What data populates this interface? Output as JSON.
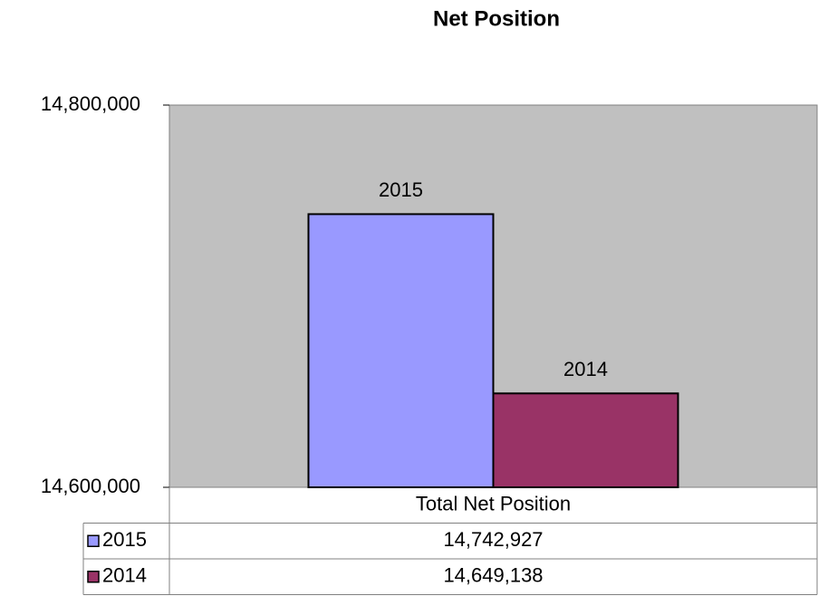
{
  "chart_data": {
    "type": "bar",
    "title": "Net Position",
    "categories": [
      "Total Net Position"
    ],
    "series": [
      {
        "name": "2015",
        "color": "#9999ff",
        "values": [
          14742927
        ],
        "value_labels": [
          "14,742,927"
        ]
      },
      {
        "name": "2014",
        "color": "#993366",
        "values": [
          14649138
        ],
        "value_labels": [
          "14,649,138"
        ]
      }
    ],
    "ylim": [
      14600000,
      14800000
    ],
    "yticks": [
      {
        "value": 14600000,
        "label": "14,600,000"
      },
      {
        "value": 14800000,
        "label": "14,800,000"
      }
    ],
    "grid": false
  }
}
